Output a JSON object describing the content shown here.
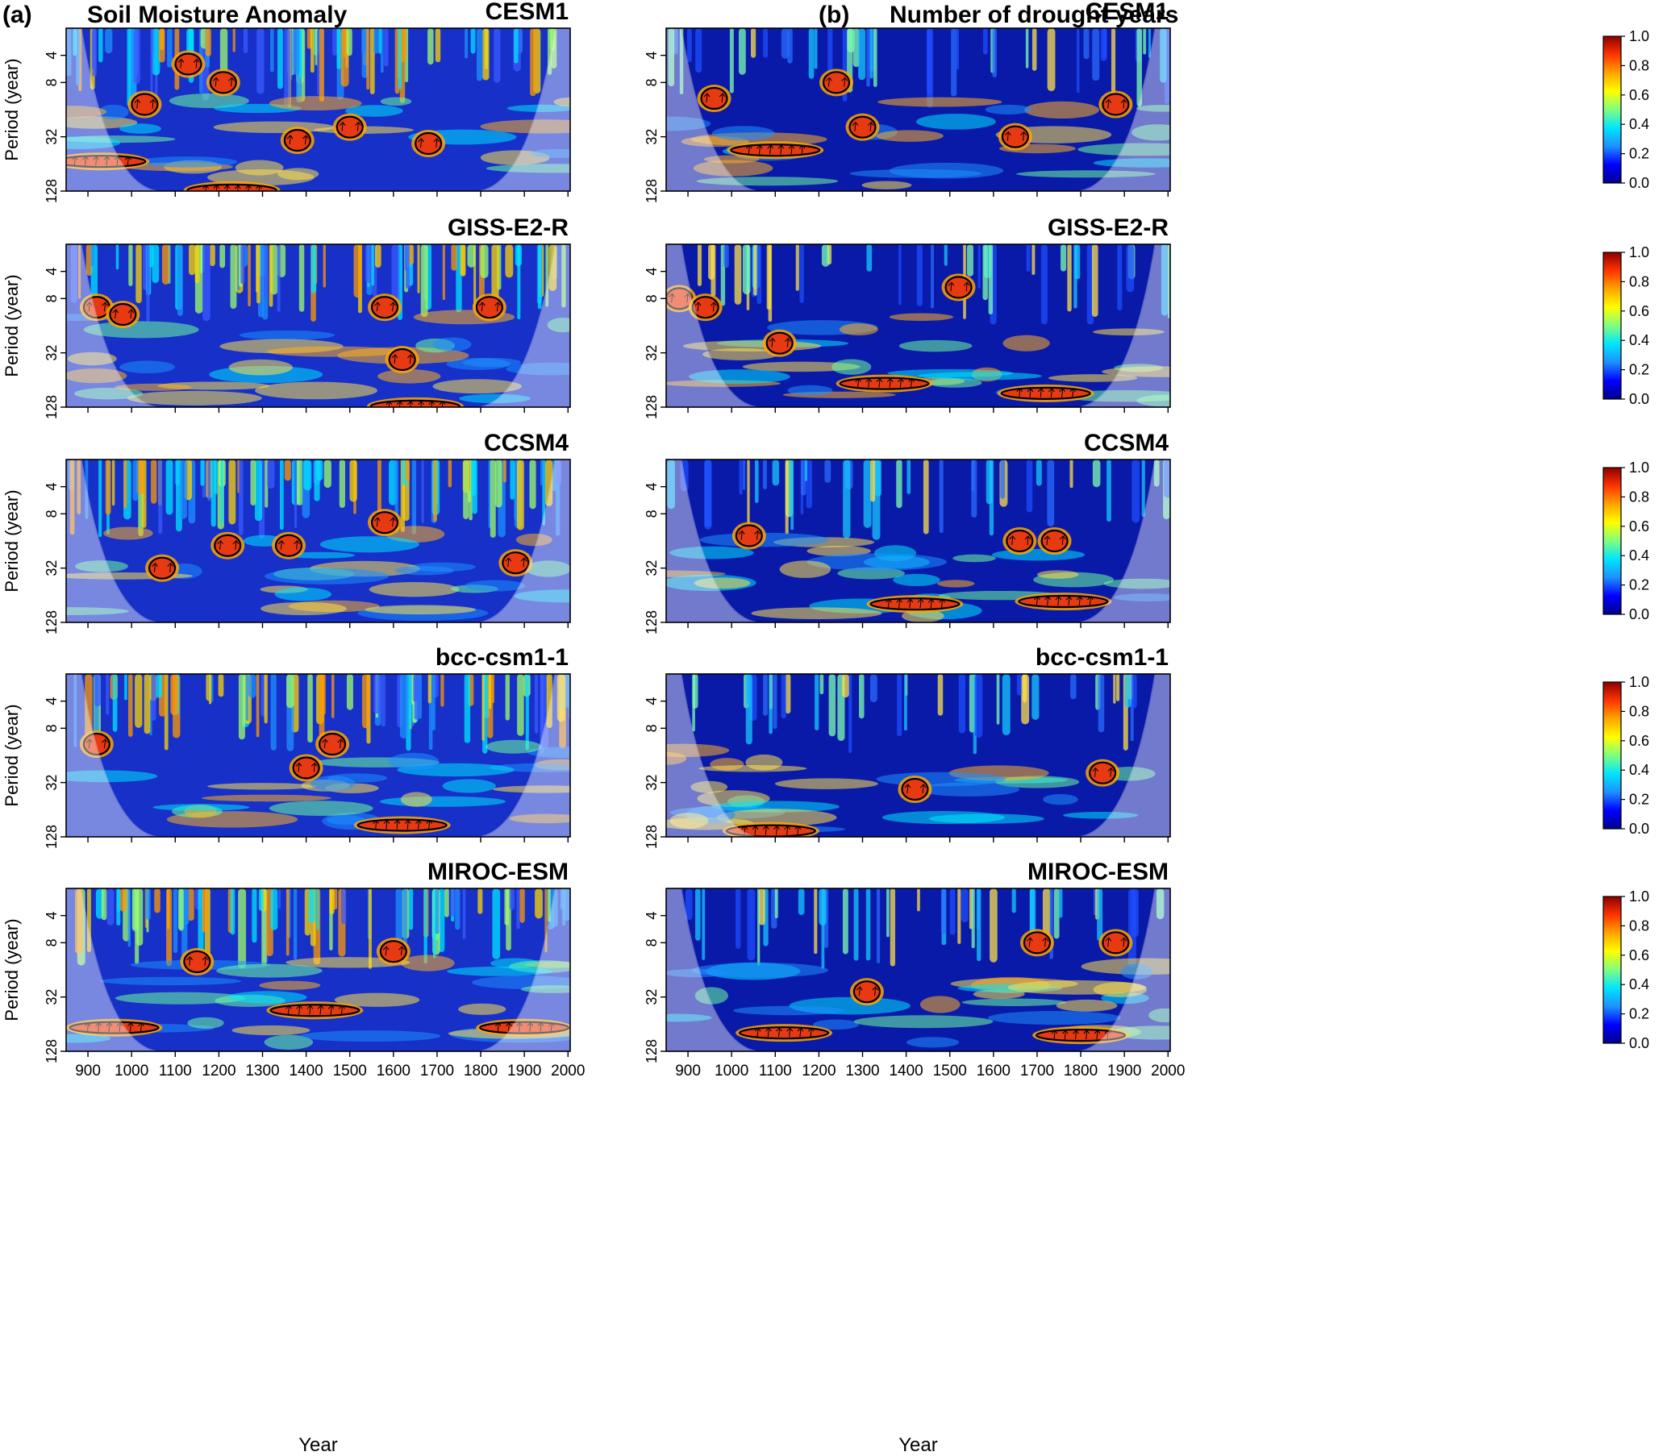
{
  "figure": {
    "panel_a_label": "(a)",
    "panel_a_title": "Soil Moisture Anomaly",
    "panel_b_label": "(b)",
    "panel_b_title": "Number of drought years",
    "colors": {
      "scale": [
        "#00008b",
        "#0000ff",
        "#1e90ff",
        "#00e5ff",
        "#7fff7f",
        "#ffff00",
        "#ffa500",
        "#ff3300",
        "#8b0000"
      ],
      "contour": "#000000",
      "cone_shade": "#ffffff"
    }
  },
  "chart_data": [
    {
      "type": "heatmap",
      "panel": "a",
      "model": "CESM1",
      "xlabel": "",
      "ylabel": "Period (year)",
      "x_ticks": [
        900,
        1000,
        1100,
        1200,
        1300,
        1400,
        1500,
        1600,
        1700,
        1800,
        1900,
        2000
      ],
      "y_ticks": [
        4,
        8,
        32,
        128
      ],
      "xlim": [
        850,
        2005
      ],
      "ylim_period": [
        2,
        128
      ],
      "y_scale": "log2",
      "significant_regions": [
        {
          "x": 1030,
          "period": 14
        },
        {
          "x": 1130,
          "period": 5
        },
        {
          "x": 1210,
          "period": 8
        },
        {
          "x": 1380,
          "period": 35
        },
        {
          "x": 1500,
          "period": 25
        },
        {
          "x": 1680,
          "period": 38
        },
        {
          "x": 930,
          "period": 60
        },
        {
          "x": 1230,
          "period": 125
        }
      ]
    },
    {
      "type": "heatmap",
      "panel": "b",
      "model": "CESM1",
      "xlabel": "",
      "ylabel": "",
      "x_ticks": [
        900,
        1000,
        1100,
        1200,
        1300,
        1400,
        1500,
        1600,
        1700,
        1800,
        1900,
        2000
      ],
      "y_ticks": [
        4,
        8,
        32,
        128
      ],
      "xlim": [
        850,
        2005
      ],
      "ylim_period": [
        2,
        128
      ],
      "y_scale": "log2",
      "significant_regions": [
        {
          "x": 960,
          "period": 12
        },
        {
          "x": 1240,
          "period": 8
        },
        {
          "x": 1100,
          "period": 45
        },
        {
          "x": 1300,
          "period": 25
        },
        {
          "x": 1650,
          "period": 32
        },
        {
          "x": 1880,
          "period": 14
        }
      ]
    },
    {
      "type": "heatmap",
      "panel": "a",
      "model": "GISS-E2-R",
      "xlabel": "",
      "ylabel": "Period (year)",
      "x_ticks": [
        900,
        1000,
        1100,
        1200,
        1300,
        1400,
        1500,
        1600,
        1700,
        1800,
        1900,
        2000
      ],
      "y_ticks": [
        4,
        8,
        32,
        128
      ],
      "xlim": [
        850,
        2005
      ],
      "ylim_period": [
        2,
        128
      ],
      "y_scale": "log2",
      "significant_regions": [
        {
          "x": 920,
          "period": 10
        },
        {
          "x": 980,
          "period": 12
        },
        {
          "x": 1580,
          "period": 10
        },
        {
          "x": 1620,
          "period": 38
        },
        {
          "x": 1820,
          "period": 10
        },
        {
          "x": 1650,
          "period": 125
        }
      ]
    },
    {
      "type": "heatmap",
      "panel": "b",
      "model": "GISS-E2-R",
      "xlabel": "",
      "ylabel": "",
      "x_ticks": [
        900,
        1000,
        1100,
        1200,
        1300,
        1400,
        1500,
        1600,
        1700,
        1800,
        1900,
        2000
      ],
      "y_ticks": [
        4,
        8,
        32,
        128
      ],
      "xlim": [
        850,
        2005
      ],
      "ylim_period": [
        2,
        128
      ],
      "y_scale": "log2",
      "significant_regions": [
        {
          "x": 880,
          "period": 8
        },
        {
          "x": 940,
          "period": 10
        },
        {
          "x": 1110,
          "period": 25
        },
        {
          "x": 1350,
          "period": 70
        },
        {
          "x": 1720,
          "period": 90
        },
        {
          "x": 1520,
          "period": 6
        }
      ]
    },
    {
      "type": "heatmap",
      "panel": "a",
      "model": "CCSM4",
      "xlabel": "",
      "ylabel": "Period (year)",
      "x_ticks": [
        900,
        1000,
        1100,
        1200,
        1300,
        1400,
        1500,
        1600,
        1700,
        1800,
        1900,
        2000
      ],
      "y_ticks": [
        4,
        8,
        32,
        128
      ],
      "xlim": [
        850,
        2005
      ],
      "ylim_period": [
        2,
        128
      ],
      "y_scale": "log2",
      "significant_regions": [
        {
          "x": 1220,
          "period": 18
        },
        {
          "x": 1360,
          "period": 18
        },
        {
          "x": 1580,
          "period": 10
        },
        {
          "x": 1070,
          "period": 32
        },
        {
          "x": 1880,
          "period": 28
        }
      ]
    },
    {
      "type": "heatmap",
      "panel": "b",
      "model": "CCSM4",
      "xlabel": "",
      "ylabel": "",
      "x_ticks": [
        900,
        1000,
        1100,
        1200,
        1300,
        1400,
        1500,
        1600,
        1700,
        1800,
        1900,
        2000
      ],
      "y_ticks": [
        4,
        8,
        32,
        128
      ],
      "xlim": [
        850,
        2005
      ],
      "ylim_period": [
        2,
        128
      ],
      "y_scale": "log2",
      "significant_regions": [
        {
          "x": 1040,
          "period": 14
        },
        {
          "x": 1660,
          "period": 16
        },
        {
          "x": 1740,
          "period": 16
        },
        {
          "x": 1420,
          "period": 80
        },
        {
          "x": 1760,
          "period": 75
        }
      ]
    },
    {
      "type": "heatmap",
      "panel": "a",
      "model": "bcc-csm1-1",
      "xlabel": "",
      "ylabel": "Period (year)",
      "x_ticks": [
        900,
        1000,
        1100,
        1200,
        1300,
        1400,
        1500,
        1600,
        1700,
        1800,
        1900,
        2000
      ],
      "y_ticks": [
        4,
        8,
        32,
        128
      ],
      "xlim": [
        850,
        2005
      ],
      "ylim_period": [
        2,
        128
      ],
      "y_scale": "log2",
      "significant_regions": [
        {
          "x": 1400,
          "period": 22
        },
        {
          "x": 1460,
          "period": 12
        },
        {
          "x": 1620,
          "period": 95
        },
        {
          "x": 920,
          "period": 12
        }
      ]
    },
    {
      "type": "heatmap",
      "panel": "b",
      "model": "bcc-csm1-1",
      "xlabel": "",
      "ylabel": "",
      "x_ticks": [
        900,
        1000,
        1100,
        1200,
        1300,
        1400,
        1500,
        1600,
        1700,
        1800,
        1900,
        2000
      ],
      "y_ticks": [
        4,
        8,
        32,
        128
      ],
      "xlim": [
        850,
        2005
      ],
      "ylim_period": [
        2,
        128
      ],
      "y_scale": "log2",
      "significant_regions": [
        {
          "x": 1420,
          "period": 38
        },
        {
          "x": 1850,
          "period": 25
        },
        {
          "x": 1090,
          "period": 110
        }
      ]
    },
    {
      "type": "heatmap",
      "panel": "a",
      "model": "MIROC-ESM",
      "xlabel": "Year",
      "ylabel": "Period (year)",
      "x_ticks": [
        900,
        1000,
        1100,
        1200,
        1300,
        1400,
        1500,
        1600,
        1700,
        1800,
        1900,
        2000
      ],
      "y_ticks": [
        4,
        8,
        32,
        128
      ],
      "xlim": [
        850,
        2005
      ],
      "ylim_period": [
        2,
        128
      ],
      "y_scale": "log2",
      "significant_regions": [
        {
          "x": 1150,
          "period": 13
        },
        {
          "x": 1420,
          "period": 45
        },
        {
          "x": 960,
          "period": 70
        },
        {
          "x": 1900,
          "period": 70
        },
        {
          "x": 1600,
          "period": 10
        }
      ]
    },
    {
      "type": "heatmap",
      "panel": "b",
      "model": "MIROC-ESM",
      "xlabel": "Year",
      "ylabel": "",
      "x_ticks": [
        900,
        1000,
        1100,
        1200,
        1300,
        1400,
        1500,
        1600,
        1700,
        1800,
        1900,
        2000
      ],
      "y_ticks": [
        4,
        8,
        32,
        128
      ],
      "xlim": [
        850,
        2005
      ],
      "ylim_period": [
        2,
        128
      ],
      "y_scale": "log2",
      "significant_regions": [
        {
          "x": 1120,
          "period": 80
        },
        {
          "x": 1800,
          "period": 85
        },
        {
          "x": 1700,
          "period": 8
        },
        {
          "x": 1880,
          "period": 8
        },
        {
          "x": 1310,
          "period": 28
        }
      ]
    },
    {
      "type": "colorbar",
      "ticks": [
        "1.0",
        "0.8",
        "0.6",
        "0.4",
        "0.2",
        "0.0"
      ],
      "range": [
        0,
        1
      ]
    }
  ]
}
